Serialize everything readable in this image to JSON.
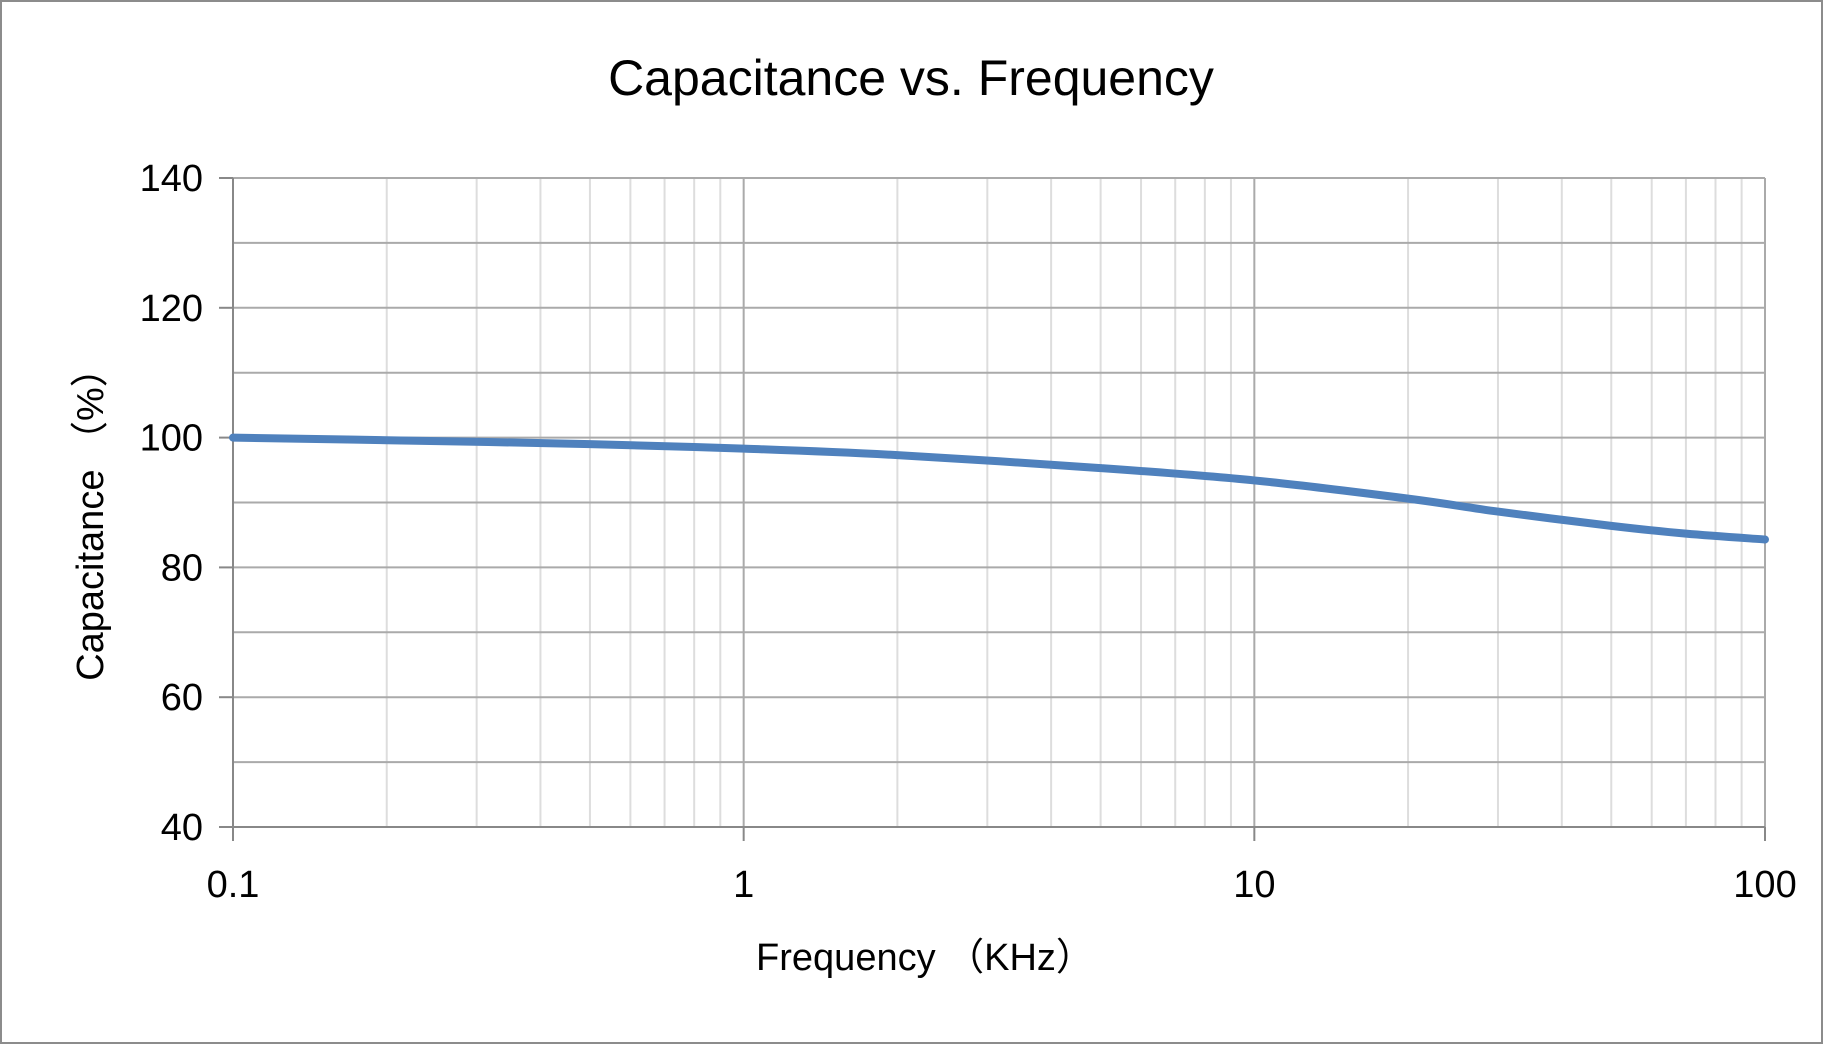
{
  "chart_data": {
    "type": "line",
    "title": "Capacitance vs. Frequency",
    "xlabel": "Frequency （KHz）",
    "ylabel": "Capacitance （%）",
    "x_scale": "log",
    "xlim": [
      0.1,
      100
    ],
    "ylim": [
      40,
      140
    ],
    "x_ticks": [
      0.1,
      1,
      10,
      100
    ],
    "x_tick_labels": [
      "0.1",
      "1",
      "10",
      "100"
    ],
    "y_ticks": [
      40,
      60,
      80,
      100,
      120,
      140
    ],
    "y_tick_labels": [
      "40",
      "60",
      "80",
      "100",
      "120",
      "140"
    ],
    "grid": true,
    "legend": "none",
    "series": [
      {
        "color": "#4F81BD",
        "x": [
          0.1,
          0.2,
          0.5,
          1,
          2,
          5,
          10,
          20,
          30,
          50,
          70,
          100
        ],
        "y": [
          100,
          99.6,
          99.0,
          98.3,
          97.3,
          95.3,
          93.4,
          90.6,
          88.6,
          86.4,
          85.2,
          84.3
        ]
      }
    ],
    "colors": {
      "line": "#4F81BD",
      "grid_major": "#AAAAAA",
      "grid_minor": "#DDDDDD",
      "axis": "#888888",
      "frame_border": "#8C8C8C"
    }
  }
}
